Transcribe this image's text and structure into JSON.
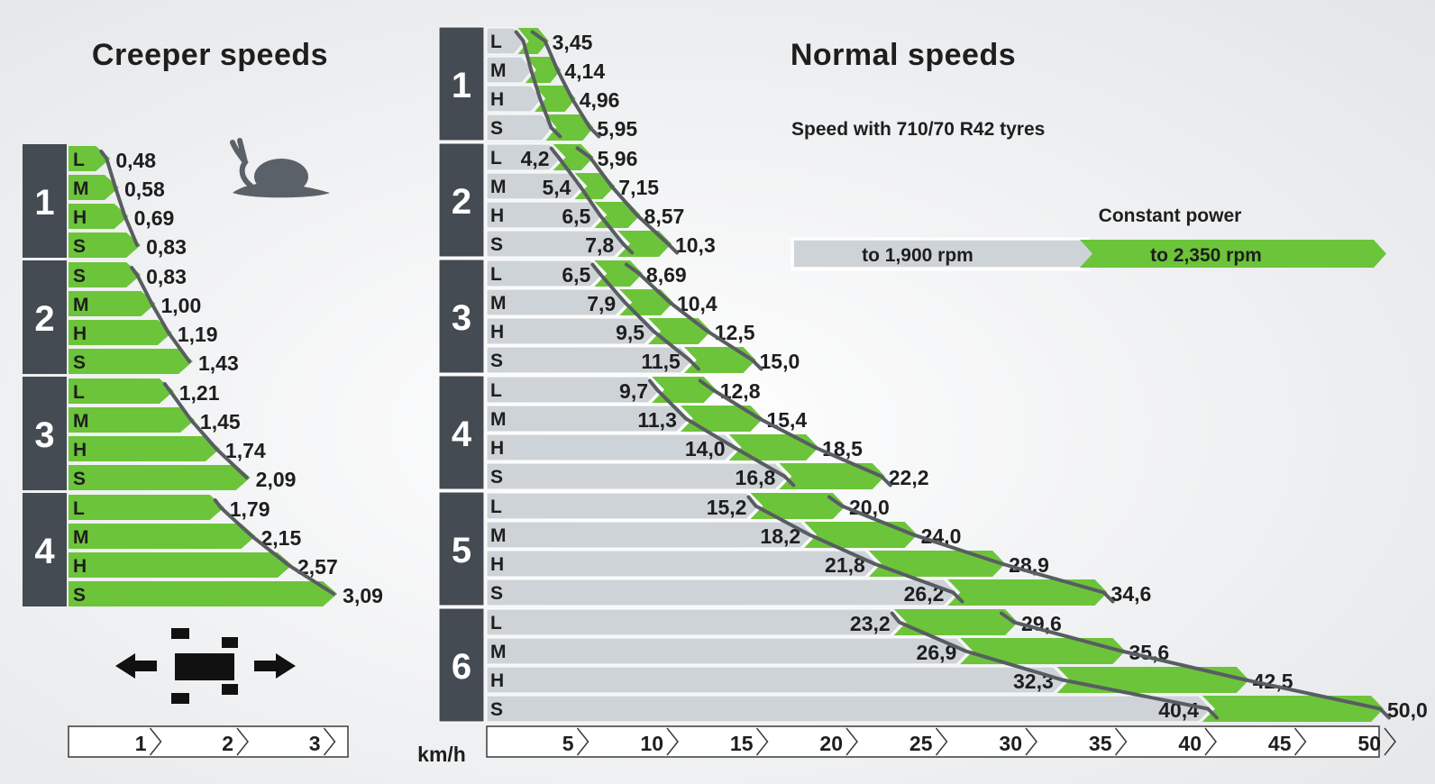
{
  "colors": {
    "green": "#6cc43a",
    "grey_bar": "#ced3d7",
    "group_block": "#444b52",
    "curve": "#585d62",
    "icon": "#5b6168",
    "text": "#1e1e1e"
  },
  "icons": {
    "creeper": "snail-icon",
    "direction": "tractor-forward-reverse-icon"
  },
  "chart_data": [
    {
      "type": "bar",
      "title": "Creeper speeds",
      "unit": "",
      "x_ticks": [
        "1",
        "2",
        "3"
      ],
      "xlim": [
        0,
        3.2
      ],
      "groups": [
        {
          "group": "1",
          "ranges": [
            {
              "range": "L",
              "speed": "0,48",
              "value": 0.48
            },
            {
              "range": "M",
              "speed": "0,58",
              "value": 0.58
            },
            {
              "range": "H",
              "speed": "0,69",
              "value": 0.69
            },
            {
              "range": "S",
              "speed": "0,83",
              "value": 0.83
            }
          ]
        },
        {
          "group": "2",
          "ranges": [
            {
              "range": "S",
              "speed": "0,83",
              "value": 0.83
            },
            {
              "range": "M",
              "speed": "1,00",
              "value": 1.0
            },
            {
              "range": "H",
              "speed": "1,19",
              "value": 1.19
            },
            {
              "range": "S",
              "speed": "1,43",
              "value": 1.43
            }
          ]
        },
        {
          "group": "3",
          "ranges": [
            {
              "range": "L",
              "speed": "1,21",
              "value": 1.21
            },
            {
              "range": "M",
              "speed": "1,45",
              "value": 1.45
            },
            {
              "range": "H",
              "speed": "1,74",
              "value": 1.74
            },
            {
              "range": "S",
              "speed": "2,09",
              "value": 2.09
            }
          ]
        },
        {
          "group": "4",
          "ranges": [
            {
              "range": "L",
              "speed": "1,79",
              "value": 1.79
            },
            {
              "range": "M",
              "speed": "2,15",
              "value": 2.15
            },
            {
              "range": "H",
              "speed": "2,57",
              "value": 2.57
            },
            {
              "range": "S",
              "speed": "3,09",
              "value": 3.09
            }
          ]
        }
      ]
    },
    {
      "type": "bar",
      "title": "Normal speeds",
      "subtitle": "Speed with 710/70 R42 tyres",
      "unit": "km/h",
      "x_ticks": [
        "5",
        "10",
        "15",
        "20",
        "25",
        "30",
        "35",
        "40",
        "45",
        "50"
      ],
      "xlim": [
        0,
        51
      ],
      "legend": {
        "title": "Constant power",
        "items": [
          {
            "label": "to 1,900 rpm",
            "color": "#ced3d7"
          },
          {
            "label": "to 2,350 rpm",
            "color": "#6cc43a"
          }
        ]
      },
      "groups": [
        {
          "group": "1",
          "ranges": [
            {
              "range": "L",
              "low": null,
              "low_label": "",
              "high": 3.45,
              "high_label": "3,45"
            },
            {
              "range": "M",
              "low": null,
              "low_label": "",
              "high": 4.14,
              "high_label": "4,14"
            },
            {
              "range": "H",
              "low": null,
              "low_label": "",
              "high": 4.96,
              "high_label": "4,96"
            },
            {
              "range": "S",
              "low": null,
              "low_label": "",
              "high": 5.95,
              "high_label": "5,95"
            }
          ]
        },
        {
          "group": "2",
          "ranges": [
            {
              "range": "L",
              "low": 4.2,
              "low_label": "4,2",
              "high": 5.96,
              "high_label": "5,96"
            },
            {
              "range": "M",
              "low": 5.4,
              "low_label": "5,4",
              "high": 7.15,
              "high_label": "7,15"
            },
            {
              "range": "H",
              "low": 6.5,
              "low_label": "6,5",
              "high": 8.57,
              "high_label": "8,57"
            },
            {
              "range": "S",
              "low": 7.8,
              "low_label": "7,8",
              "high": 10.3,
              "high_label": "10,3"
            }
          ]
        },
        {
          "group": "3",
          "ranges": [
            {
              "range": "L",
              "low": 6.5,
              "low_label": "6,5",
              "high": 8.69,
              "high_label": "8,69"
            },
            {
              "range": "M",
              "low": 7.9,
              "low_label": "7,9",
              "high": 10.4,
              "high_label": "10,4"
            },
            {
              "range": "H",
              "low": 9.5,
              "low_label": "9,5",
              "high": 12.5,
              "high_label": "12,5"
            },
            {
              "range": "S",
              "low": 11.5,
              "low_label": "11,5",
              "high": 15.0,
              "high_label": "15,0"
            }
          ]
        },
        {
          "group": "4",
          "ranges": [
            {
              "range": "L",
              "low": 9.7,
              "low_label": "9,7",
              "high": 12.8,
              "high_label": "12,8"
            },
            {
              "range": "M",
              "low": 11.3,
              "low_label": "11,3",
              "high": 15.4,
              "high_label": "15,4"
            },
            {
              "range": "H",
              "low": 14.0,
              "low_label": "14,0",
              "high": 18.5,
              "high_label": "18,5"
            },
            {
              "range": "S",
              "low": 16.8,
              "low_label": "16,8",
              "high": 22.2,
              "high_label": "22,2"
            }
          ]
        },
        {
          "group": "5",
          "ranges": [
            {
              "range": "L",
              "low": 15.2,
              "low_label": "15,2",
              "high": 20.0,
              "high_label": "20,0"
            },
            {
              "range": "M",
              "low": 18.2,
              "low_label": "18,2",
              "high": 24.0,
              "high_label": "24,0"
            },
            {
              "range": "H",
              "low": 21.8,
              "low_label": "21,8",
              "high": 28.9,
              "high_label": "28,9"
            },
            {
              "range": "S",
              "low": 26.2,
              "low_label": "26,2",
              "high": 34.6,
              "high_label": "34,6"
            }
          ]
        },
        {
          "group": "6",
          "ranges": [
            {
              "range": "L",
              "low": 23.2,
              "low_label": "23,2",
              "high": 29.6,
              "high_label": "29,6"
            },
            {
              "range": "M",
              "low": 26.9,
              "low_label": "26,9",
              "high": 35.6,
              "high_label": "35,6"
            },
            {
              "range": "H",
              "low": 32.3,
              "low_label": "32,3",
              "high": 42.5,
              "high_label": "42,5"
            },
            {
              "range": "S",
              "low": 40.4,
              "low_label": "40,4",
              "high": 50.0,
              "high_label": "50,0"
            }
          ]
        }
      ]
    }
  ]
}
